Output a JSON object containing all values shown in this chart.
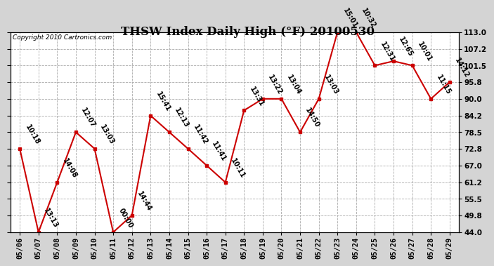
{
  "title": "THSW Index Daily High (°F) 20100530",
  "copyright": "Copyright 2010 Cartronics.com",
  "dates": [
    "05/06",
    "05/07",
    "05/08",
    "05/09",
    "05/10",
    "05/11",
    "05/12",
    "05/13",
    "05/14",
    "05/15",
    "05/16",
    "05/17",
    "05/18",
    "05/19",
    "05/20",
    "05/21",
    "05/22",
    "05/23",
    "05/24",
    "05/25",
    "05/26",
    "05/27",
    "05/28",
    "05/29"
  ],
  "values": [
    72.8,
    44.0,
    61.2,
    78.5,
    72.8,
    44.0,
    49.8,
    84.2,
    78.5,
    72.8,
    67.0,
    61.2,
    86.0,
    90.0,
    90.0,
    78.5,
    90.0,
    113.0,
    113.0,
    101.5,
    103.0,
    101.5,
    90.0,
    95.8
  ],
  "labels": [
    "10:18",
    "13:13",
    "14:08",
    "12:07",
    "13:03",
    "00:00",
    "14:44",
    "15:41",
    "12:13",
    "11:42",
    "11:41",
    "10:11",
    "13:31",
    "13:22",
    "13:04",
    "14:50",
    "13:03",
    "15:01",
    "10:32",
    "12:31",
    "12:65",
    "10:01",
    "11:15",
    "14:12"
  ],
  "yticks": [
    44.0,
    49.8,
    55.5,
    61.2,
    67.0,
    72.8,
    78.5,
    84.2,
    90.0,
    95.8,
    101.5,
    107.2,
    113.0
  ],
  "line_color": "#cc0000",
  "marker_color": "#cc0000",
  "title_bg_color": "#d4d4d4",
  "plot_bg_color": "#ffffff",
  "outer_bg_color": "#d4d4d4",
  "grid_color": "#aaaaaa",
  "title_fontsize": 12,
  "label_fontsize": 7,
  "tick_fontsize": 7.5,
  "copyright_fontsize": 6.5,
  "ymin": 44.0,
  "ymax": 113.0
}
